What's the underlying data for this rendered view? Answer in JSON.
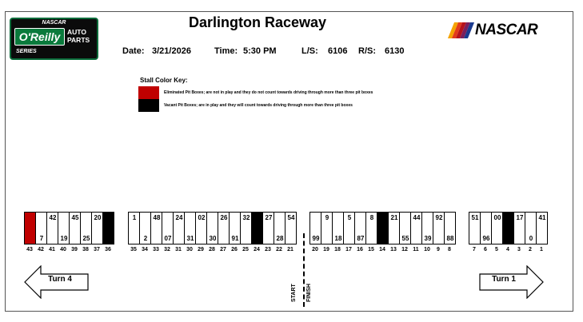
{
  "logo_left": {
    "top": "NASCAR",
    "brand": "O'Reilly",
    "parts": "AUTO PARTS",
    "bottom": "SERIES"
  },
  "logo_right": {
    "word": "NASCAR",
    "stripe_colors": [
      "#f5a300",
      "#e23b1a",
      "#b5121b",
      "#7a1f5c",
      "#1a3a8f"
    ]
  },
  "title": "Darlington Raceway",
  "info": {
    "date_label": "Date:",
    "date": "3/21/2026",
    "time_label": "Time:",
    "time": "5:30 PM",
    "ls_label": "L/S:",
    "ls": "6106",
    "rs_label": "R/S:",
    "rs": "6130"
  },
  "key": {
    "title": "Stall Color Key:",
    "eliminated": {
      "color": "#c00000",
      "text": "Eliminated Pit Boxes; are not in play and they do not count towards driving through more than three pit boxes"
    },
    "vacant": {
      "color": "#000000",
      "text": "Vacant Pit Boxes; are in play and they will count towards driving through more than three pit boxes"
    }
  },
  "groups": [
    {
      "name": "group-1",
      "stalls": [
        {
          "stall": "43",
          "status": "eliminated",
          "top": "",
          "bottom": ""
        },
        {
          "stall": "42",
          "status": "",
          "top": "",
          "bottom": "7"
        },
        {
          "stall": "41",
          "status": "",
          "top": "42",
          "bottom": ""
        },
        {
          "stall": "40",
          "status": "",
          "top": "",
          "bottom": "19"
        },
        {
          "stall": "39",
          "status": "",
          "top": "45",
          "bottom": ""
        },
        {
          "stall": "38",
          "status": "",
          "top": "",
          "bottom": "25"
        },
        {
          "stall": "37",
          "status": "",
          "top": "20",
          "bottom": ""
        },
        {
          "stall": "36",
          "status": "vacant",
          "top": "",
          "bottom": ""
        }
      ]
    },
    {
      "name": "group-2",
      "stalls": [
        {
          "stall": "35",
          "status": "",
          "top": "1",
          "bottom": ""
        },
        {
          "stall": "34",
          "status": "",
          "top": "",
          "bottom": "2"
        },
        {
          "stall": "33",
          "status": "",
          "top": "48",
          "bottom": ""
        },
        {
          "stall": "32",
          "status": "",
          "top": "",
          "bottom": "07"
        },
        {
          "stall": "31",
          "status": "",
          "top": "24",
          "bottom": ""
        },
        {
          "stall": "30",
          "status": "",
          "top": "",
          "bottom": "31"
        },
        {
          "stall": "29",
          "status": "",
          "top": "02",
          "bottom": ""
        },
        {
          "stall": "28",
          "status": "",
          "top": "",
          "bottom": "30"
        },
        {
          "stall": "27",
          "status": "",
          "top": "26",
          "bottom": ""
        },
        {
          "stall": "26",
          "status": "",
          "top": "",
          "bottom": "91"
        },
        {
          "stall": "25",
          "status": "",
          "top": "32",
          "bottom": ""
        },
        {
          "stall": "24",
          "status": "vacant",
          "top": "",
          "bottom": ""
        },
        {
          "stall": "23",
          "status": "",
          "top": "27",
          "bottom": ""
        },
        {
          "stall": "22",
          "status": "",
          "top": "",
          "bottom": "28"
        },
        {
          "stall": "21",
          "status": "",
          "top": "54",
          "bottom": ""
        }
      ]
    },
    {
      "name": "group-3",
      "stalls": [
        {
          "stall": "20",
          "status": "",
          "top": "",
          "bottom": "99"
        },
        {
          "stall": "19",
          "status": "",
          "top": "9",
          "bottom": ""
        },
        {
          "stall": "18",
          "status": "",
          "top": "",
          "bottom": "18"
        },
        {
          "stall": "17",
          "status": "",
          "top": "5",
          "bottom": ""
        },
        {
          "stall": "16",
          "status": "",
          "top": "",
          "bottom": "87"
        },
        {
          "stall": "15",
          "status": "",
          "top": "8",
          "bottom": ""
        },
        {
          "stall": "14",
          "status": "vacant",
          "top": "",
          "bottom": ""
        },
        {
          "stall": "13",
          "status": "",
          "top": "21",
          "bottom": ""
        },
        {
          "stall": "12",
          "status": "",
          "top": "",
          "bottom": "55"
        },
        {
          "stall": "11",
          "status": "",
          "top": "44",
          "bottom": ""
        },
        {
          "stall": "10",
          "status": "",
          "top": "",
          "bottom": "39"
        },
        {
          "stall": "9",
          "status": "",
          "top": "92",
          "bottom": ""
        },
        {
          "stall": "8",
          "status": "",
          "top": "",
          "bottom": "88"
        }
      ]
    },
    {
      "name": "group-4",
      "stalls": [
        {
          "stall": "7",
          "status": "",
          "top": "51",
          "bottom": ""
        },
        {
          "stall": "6",
          "status": "",
          "top": "",
          "bottom": "96"
        },
        {
          "stall": "5",
          "status": "",
          "top": "00",
          "bottom": ""
        },
        {
          "stall": "4",
          "status": "vacant",
          "top": "",
          "bottom": ""
        },
        {
          "stall": "3",
          "status": "",
          "top": "17",
          "bottom": ""
        },
        {
          "stall": "2",
          "status": "",
          "top": "",
          "bottom": "0"
        },
        {
          "stall": "1",
          "status": "",
          "top": "41",
          "bottom": ""
        }
      ]
    }
  ],
  "turn_left": "Turn 4",
  "turn_right": "Turn 1",
  "start_label": "START",
  "finish_label": "FINISH"
}
